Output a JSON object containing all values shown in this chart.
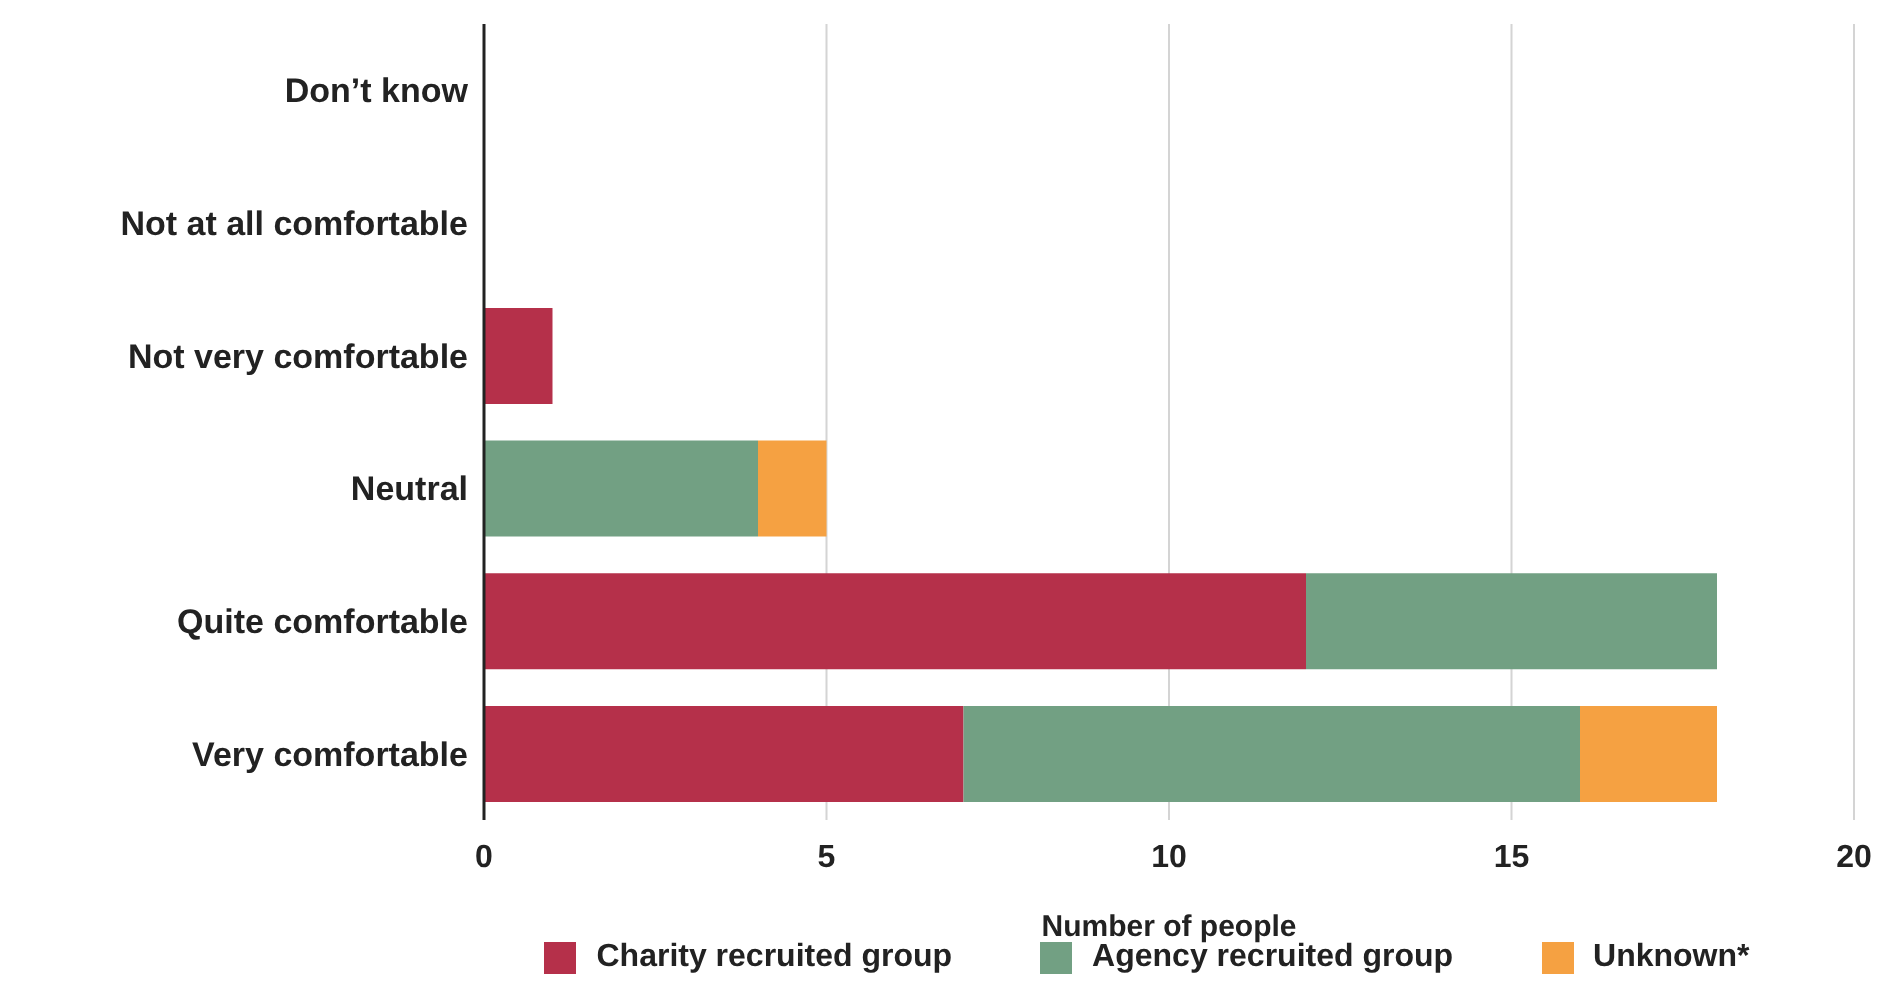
{
  "chart_data": {
    "type": "bar",
    "orientation": "horizontal",
    "stacked": true,
    "xlabel": "Number of people",
    "categories": [
      "Don’t know",
      "Not at all comfortable",
      "Not very comfortable",
      "Neutral",
      "Quite comfortable",
      "Very comfortable"
    ],
    "series": [
      {
        "name": "Charity recruited group",
        "color": "#b5304a",
        "values": [
          0,
          0,
          1,
          0,
          12,
          7
        ]
      },
      {
        "name": "Agency recruited group",
        "color": "#72a083",
        "values": [
          0,
          0,
          0,
          4,
          6,
          9
        ]
      },
      {
        "name": "Unknown*",
        "color": "#f5a142",
        "values": [
          0,
          0,
          0,
          1,
          0,
          2
        ]
      }
    ],
    "xlim": [
      0,
      20
    ],
    "xticks": [
      0,
      5,
      10,
      15,
      20
    ],
    "grid": "x",
    "legend": "bottom"
  }
}
